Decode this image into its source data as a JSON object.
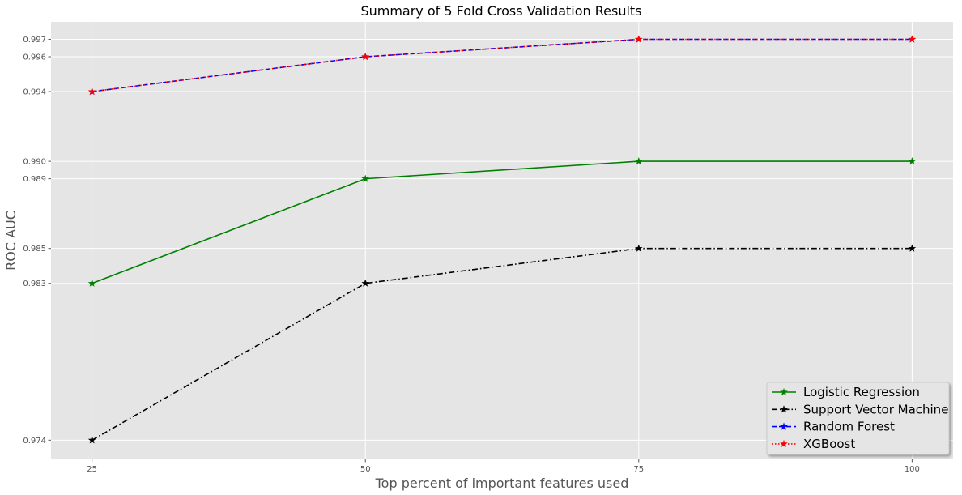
{
  "chart_data": {
    "type": "line",
    "title": "Summary of 5 Fold Cross Validation Results",
    "xlabel": "Top percent of important features used",
    "ylabel": "ROC AUC",
    "x": [
      25,
      50,
      75,
      100
    ],
    "x_tick_labels": [
      "25",
      "50",
      "75",
      "100"
    ],
    "y_ticks": [
      0.974,
      0.983,
      0.985,
      0.989,
      0.99,
      0.994,
      0.996,
      0.997
    ],
    "y_tick_labels": [
      "0.974",
      "0.983",
      "0.985",
      "0.989",
      "0.990",
      "0.994",
      "0.996",
      "0.997"
    ],
    "xlim": [
      21.25,
      103.75
    ],
    "ylim": [
      0.9729,
      0.998
    ],
    "grid": true,
    "legend_position": "lower-right",
    "background_color": "#e5e5e5",
    "grid_color": "#ffffff",
    "series": [
      {
        "name": "Logistic Regression",
        "values": [
          0.983,
          0.989,
          0.99,
          0.99
        ],
        "color": "#008000",
        "line_style": "solid",
        "marker": "star",
        "marker_color": "#008000"
      },
      {
        "name": "Support Vector Machine",
        "values": [
          0.974,
          0.983,
          0.985,
          0.985
        ],
        "color": "#000000",
        "line_style": "dash-dot",
        "marker": "star",
        "marker_color": "#000000"
      },
      {
        "name": "Random Forest",
        "values": [
          0.994,
          0.996,
          0.997,
          0.997
        ],
        "color": "#0000ff",
        "line_style": "dashed",
        "marker": "star",
        "marker_color": "#0000ff"
      },
      {
        "name": "XGBoost",
        "values": [
          0.994,
          0.996,
          0.997,
          0.997
        ],
        "color": "#ff0000",
        "line_style": "dotted",
        "marker": "star",
        "marker_color": "#ff0000"
      }
    ]
  }
}
